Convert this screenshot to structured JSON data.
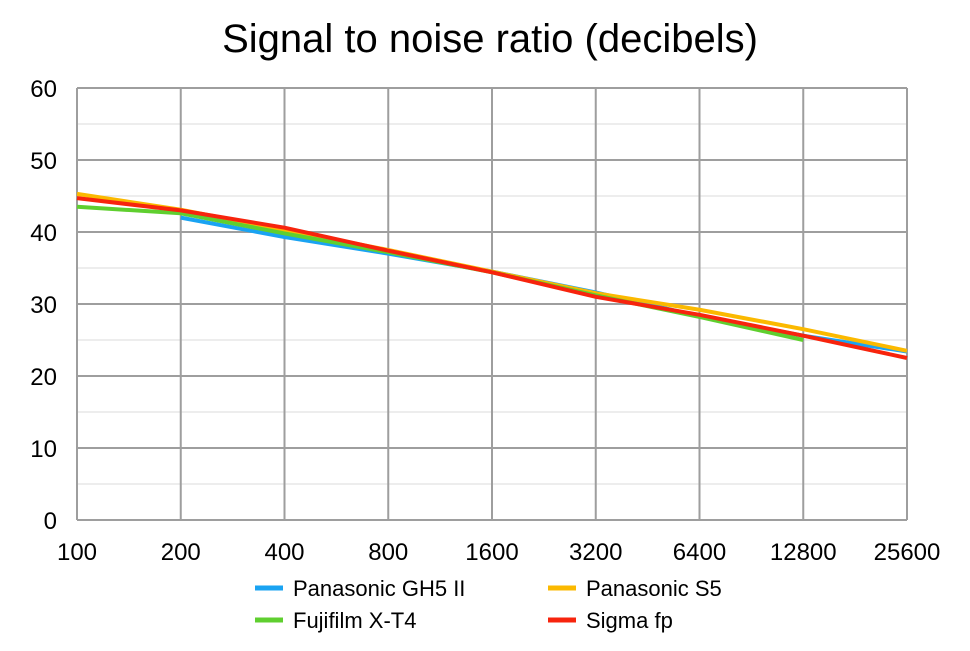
{
  "chart_data": {
    "type": "line",
    "title": "Signal to noise ratio (decibels)",
    "xlabel": "",
    "ylabel": "",
    "x_scale": "log2",
    "categories": [
      "100",
      "200",
      "400",
      "800",
      "1600",
      "3200",
      "6400",
      "12800",
      "25600"
    ],
    "yticks": [
      "0",
      "10",
      "20",
      "30",
      "40",
      "50",
      "60"
    ],
    "ylim": [
      0,
      60
    ],
    "grid": true,
    "legend_position": "bottom",
    "series": [
      {
        "name": "Panasonic GH5 II",
        "color": "#1aa3f2",
        "values": [
          null,
          42.0,
          39.3,
          37.0,
          34.5,
          31.6,
          28.3,
          25.6,
          23.4
        ]
      },
      {
        "name": "Panasonic S5",
        "color": "#fbb900",
        "values": [
          45.3,
          43.1,
          40.3,
          37.5,
          34.5,
          31.5,
          29.2,
          26.5,
          23.5
        ]
      },
      {
        "name": "Fujifilm X-T4",
        "color": "#5fcf2f",
        "values": [
          43.5,
          42.6,
          39.8,
          37.2,
          34.4,
          31.2,
          28.2,
          25.0,
          null
        ]
      },
      {
        "name": "Sigma fp",
        "color": "#f7240d",
        "values": [
          44.7,
          43.0,
          40.6,
          37.4,
          34.4,
          31.0,
          28.5,
          25.6,
          22.5
        ]
      }
    ]
  }
}
